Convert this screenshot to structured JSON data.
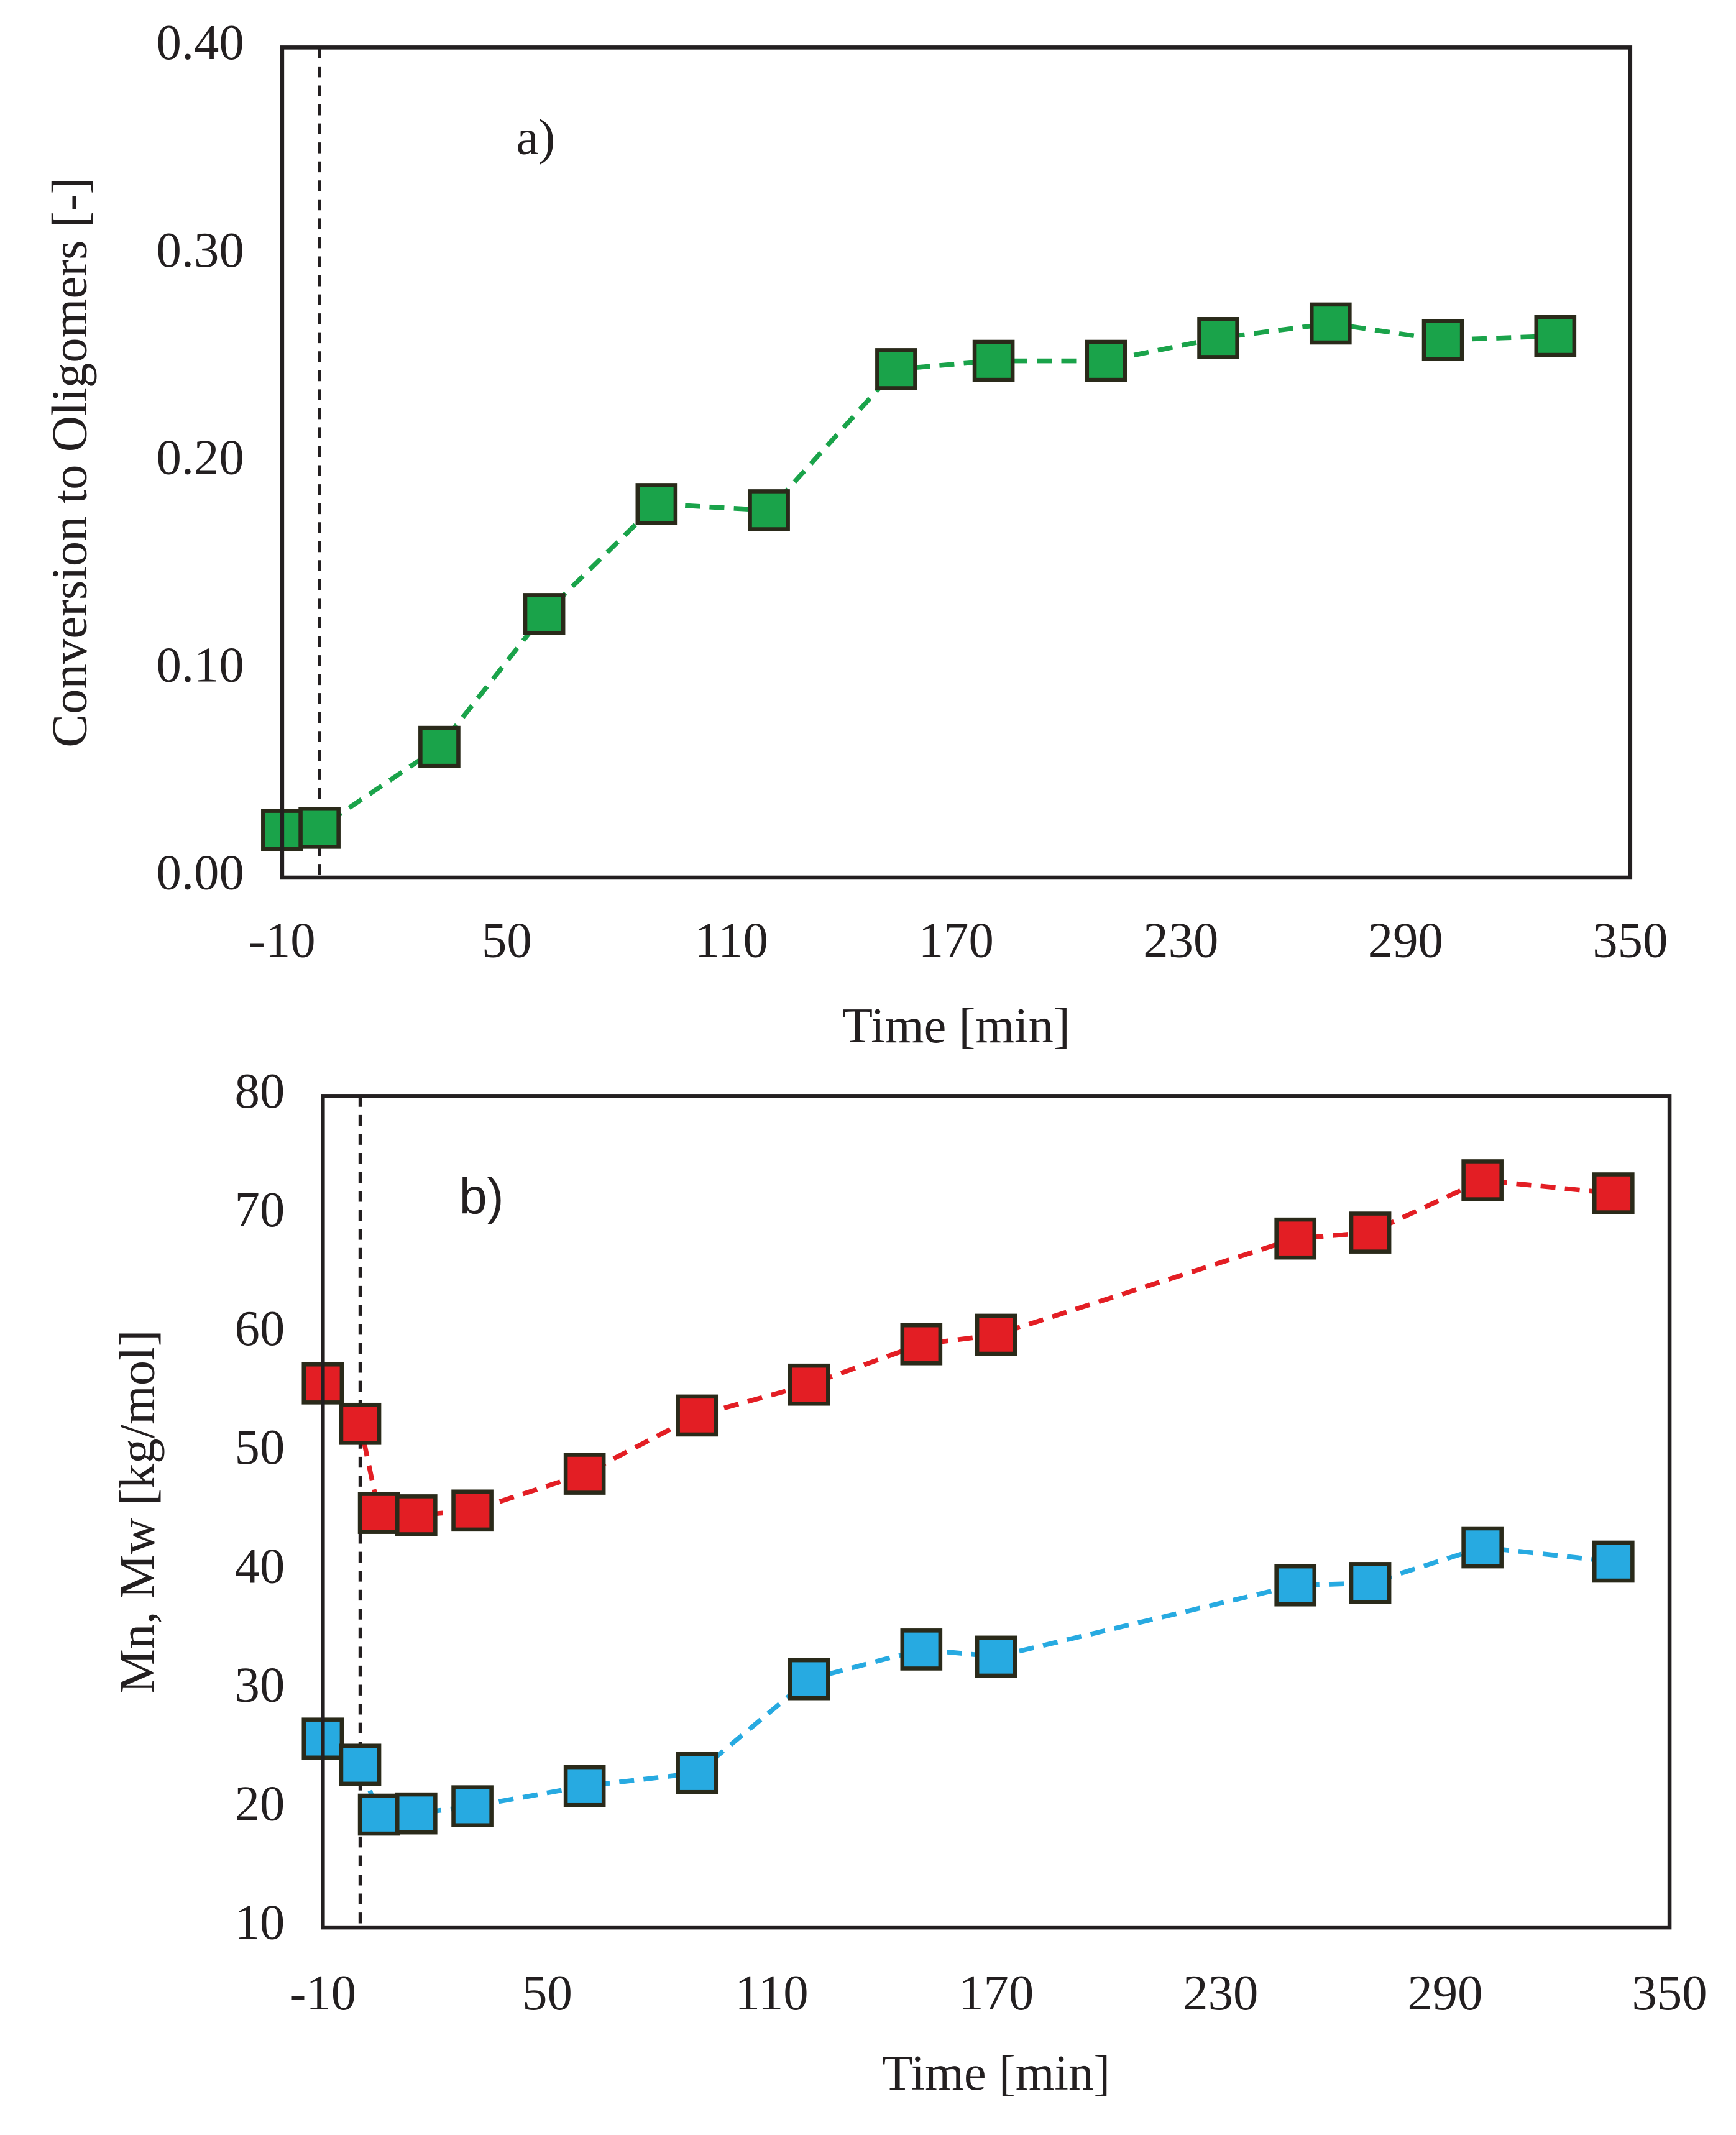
{
  "chart_data": [
    {
      "type": "line",
      "annotation": "a)",
      "xlabel": "Time [min]",
      "ylabel": "Conversion to Oligomers [-]",
      "x": [
        -10,
        0,
        32,
        60,
        90,
        120,
        154,
        180,
        210,
        240,
        270,
        300,
        330
      ],
      "series": [
        {
          "color": "#1aa34a",
          "values": [
            0.023,
            0.024,
            0.063,
            0.127,
            0.18,
            0.177,
            0.245,
            0.249,
            0.249,
            0.26,
            0.267,
            0.259,
            0.261
          ]
        }
      ],
      "reference_x": 0,
      "xlim": [
        -10,
        350
      ],
      "xticks": [
        -10,
        50,
        110,
        170,
        230,
        290,
        350
      ],
      "ylim": [
        0,
        0.4
      ],
      "yticks": [
        {
          "value": 0,
          "label": "0.00"
        },
        {
          "value": 0.1,
          "label": "0.10"
        },
        {
          "value": 0.2,
          "label": "0.20"
        },
        {
          "value": 0.3,
          "label": "0.30"
        },
        {
          "value": 0.4,
          "label": "0.40"
        }
      ],
      "grid": false
    },
    {
      "type": "line",
      "annotation": "b)",
      "xlabel": "Time [min]",
      "ylabel": "Mn, Mw [kg/mol]",
      "x": [
        -10,
        0,
        5,
        15,
        30,
        60,
        90,
        120,
        150,
        170,
        250,
        270,
        300,
        335
      ],
      "series": [
        {
          "color": "#e31e24",
          "values": [
            55.8,
            52.4,
            44.9,
            44.7,
            45.1,
            48.2,
            53.1,
            55.7,
            59.1,
            59.9,
            68.0,
            68.5,
            72.9,
            71.8
          ]
        },
        {
          "color": "#27aae1",
          "values": [
            25.9,
            23.7,
            19.5,
            19.6,
            20.2,
            21.9,
            23.0,
            30.9,
            33.4,
            32.8,
            38.8,
            39.0,
            42.0,
            40.8
          ]
        }
      ],
      "reference_x": 0,
      "xlim": [
        -10,
        350
      ],
      "xticks": [
        -10,
        50,
        110,
        170,
        230,
        290,
        350
      ],
      "ylim": [
        10,
        80
      ],
      "yticks": [
        10,
        20,
        30,
        40,
        50,
        60,
        70,
        80
      ],
      "grid": false
    }
  ]
}
